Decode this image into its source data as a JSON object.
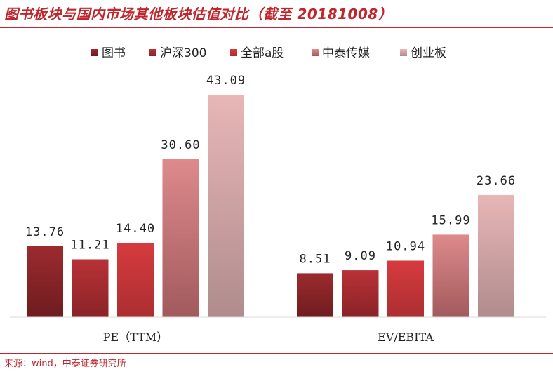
{
  "title": "图书板块与国内市场其他板块估值对比（截至 20181008）",
  "source": "来源：wind，中泰证券研究所",
  "chart_data": {
    "type": "bar",
    "title": "图书板块与国内市场其他板块估值对比（截至 20181008）",
    "categories": [
      "PE（TTM）",
      "EV/EBITA"
    ],
    "legend_position": "top",
    "grid": false,
    "ylim": [
      0,
      50
    ],
    "series": [
      {
        "name": "图书",
        "values": [
          13.76,
          8.51
        ],
        "value_labels": [
          "13.76",
          "8.51"
        ],
        "color_top": "#9c2b2e",
        "color_bottom": "#6e1c1f"
      },
      {
        "name": "沪深300",
        "values": [
          11.21,
          9.09
        ],
        "value_labels": [
          "11.21",
          "9.09"
        ],
        "color_top": "#b83236",
        "color_bottom": "#8a2327"
      },
      {
        "name": "全部a股",
        "values": [
          14.4,
          10.94
        ],
        "value_labels": [
          "14.40",
          "10.94"
        ],
        "color_top": "#d63b3e",
        "color_bottom": "#ac2e31"
      },
      {
        "name": "中泰传媒",
        "values": [
          30.6,
          15.99
        ],
        "value_labels": [
          "30.60",
          "15.99"
        ],
        "color_top": "#dd8a8c",
        "color_bottom": "#a25a5c"
      },
      {
        "name": "创业板",
        "values": [
          43.09,
          23.66
        ],
        "value_labels": [
          "43.09",
          "23.66"
        ],
        "color_top": "#e8b6b7",
        "color_bottom": "#b08c8d"
      }
    ]
  }
}
